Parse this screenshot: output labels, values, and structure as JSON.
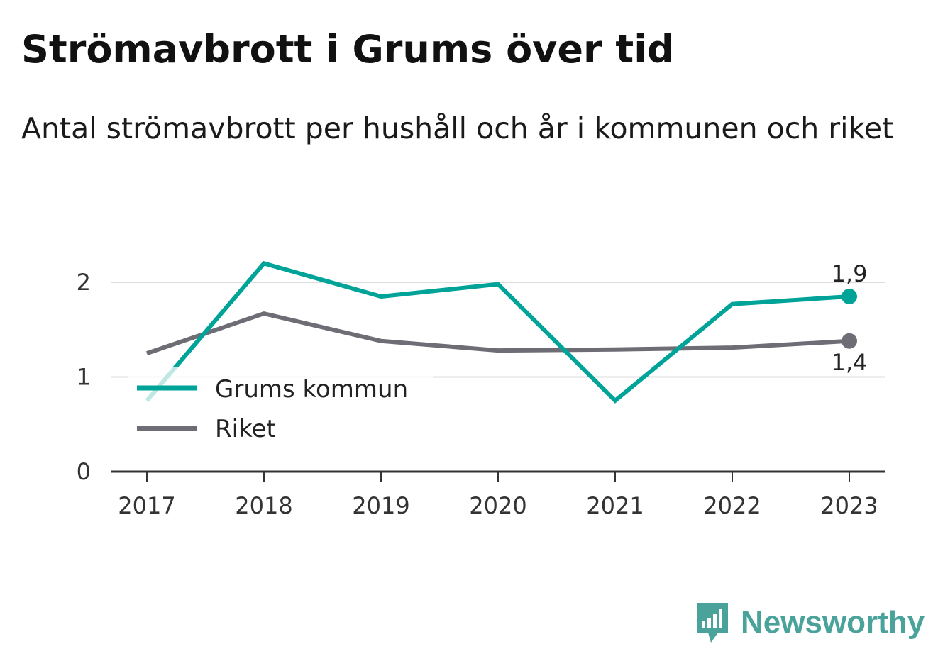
{
  "title": "Strömavbrott i Grums över tid",
  "subtitle": "Antal strömavbrott per hushåll och år i kommunen och riket",
  "brand": {
    "name": "Newsworthy",
    "color": "#4aa39b",
    "icon": "newsworthy-logo-icon"
  },
  "colors": {
    "grums": "#00a398",
    "riket": "#6e6d75",
    "grid": "#dddddd",
    "axis": "#333333"
  },
  "chart_data": {
    "type": "line",
    "categories": [
      "2017",
      "2018",
      "2019",
      "2020",
      "2021",
      "2022",
      "2023"
    ],
    "series": [
      {
        "name": "Grums kommun",
        "values": [
          0.75,
          2.2,
          1.85,
          1.98,
          0.75,
          1.77,
          1.85
        ]
      },
      {
        "name": "Riket",
        "values": [
          1.25,
          1.67,
          1.38,
          1.28,
          1.29,
          1.31,
          1.38
        ]
      }
    ],
    "end_labels": [
      "1,9",
      "1,4"
    ],
    "yticks": [
      "0",
      "1",
      "2"
    ],
    "ylim": [
      0,
      2.45
    ],
    "grid": true,
    "legend": "left, inside plot"
  }
}
